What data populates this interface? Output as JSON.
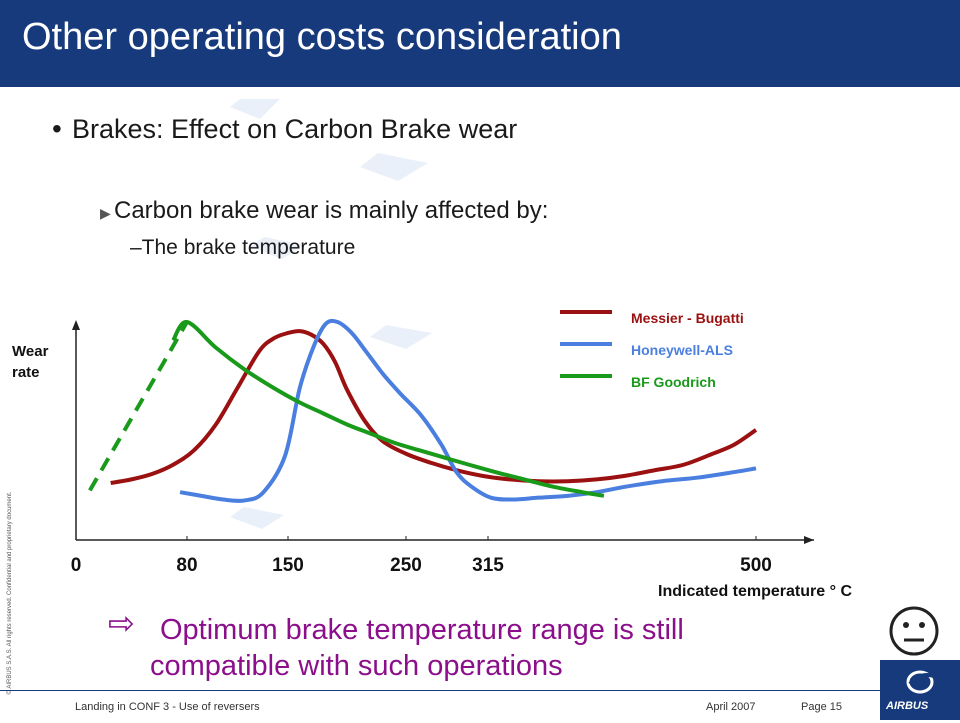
{
  "slide": {
    "title": "Other operating costs consideration",
    "bullet": "Brakes: Effect on Carbon Brake wear",
    "sub_bullet": "Carbon brake wear is mainly affected by:",
    "sub_sub_bullet": "–The brake temperature",
    "conclusion_line1": "Optimum brake temperature range is still",
    "conclusion_line2": "compatible with such operations",
    "copyright": "© AIRBUS S.A.S. All rights reserved. Confidential and proprietary document.",
    "footer_left": "Landing in CONF 3 - Use of reversers",
    "footer_date": "April 2007",
    "footer_page": "Page 15",
    "logo_text": "AIRBUS",
    "icons": [
      "bullet-dot-icon",
      "triangle-arrow-icon",
      "hollow-arrow-icon",
      "neutral-face-icon",
      "airbus-logo-icon"
    ],
    "colors": {
      "header": "#173a7c",
      "accent_text": "#8b0f8b",
      "messier": "#9b1010",
      "honeywell": "#4a7fe0",
      "goodrich": "#1a9a1a"
    }
  },
  "chart_data": {
    "type": "line",
    "title": "",
    "ylabel": "Wear rate",
    "xlabel": "Indicated temperature ° C",
    "x_tick_labels": [
      "0",
      "80",
      "150",
      "250",
      "315",
      "500"
    ],
    "x_ticks": [
      0,
      80,
      150,
      250,
      315,
      500
    ],
    "xlim": [
      0,
      500
    ],
    "ylim": [
      0,
      100
    ],
    "y_ticks_shown": false,
    "grid": false,
    "legend_position": "top-right",
    "series": [
      {
        "name": "Messier - Bugatti",
        "color": "#9b1010",
        "x": [
          25,
          40,
          55,
          70,
          85,
          100,
          115,
          130,
          140,
          150,
          160,
          170,
          180,
          190,
          200,
          215,
          230,
          250,
          270,
          290,
          310,
          330,
          350,
          370,
          390,
          410,
          430,
          450,
          470,
          485,
          500
        ],
        "y": [
          12,
          14,
          17,
          22,
          30,
          44,
          64,
          84,
          91,
          94,
          95,
          93,
          88,
          78,
          63,
          46,
          35,
          28,
          23,
          19,
          16,
          14,
          13,
          13,
          14,
          16,
          19,
          22,
          28,
          33,
          41
        ]
      },
      {
        "name": "Honeywell-ALS",
        "color": "#4a7fe0",
        "x": [
          75,
          90,
          105,
          120,
          133,
          148,
          160,
          172,
          182,
          192,
          204,
          216,
          230,
          245,
          262,
          278,
          290,
          302,
          317,
          332,
          350,
          370,
          390,
          410,
          435,
          460,
          485,
          500
        ],
        "y": [
          7,
          5,
          3,
          2.5,
          7,
          27,
          64,
          87,
          99,
          100,
          94,
          84,
          72,
          61,
          49,
          33,
          18,
          10,
          4,
          3,
          4,
          5,
          7,
          10,
          13,
          15,
          18,
          20
        ]
      },
      {
        "name": "BF Goodrich",
        "color": "#1a9a1a",
        "x": [
          70,
          80,
          100,
          120,
          140,
          160,
          180,
          200,
          220,
          240,
          260,
          280,
          300,
          320,
          340,
          360,
          380,
          395
        ],
        "y": [
          90,
          100,
          86,
          74,
          64,
          56,
          50,
          44,
          39,
          34,
          30,
          26,
          22,
          18,
          14,
          10,
          7,
          5
        ]
      },
      {
        "name": "",
        "color": "#1a9a1a",
        "dashed": true,
        "x": [
          10,
          80
        ],
        "y": [
          8,
          100
        ]
      }
    ]
  }
}
